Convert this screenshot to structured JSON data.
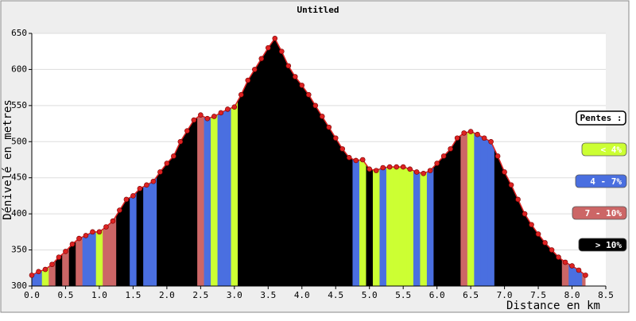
{
  "chart_data": {
    "type": "area",
    "title": "Untitled",
    "x_label": "Distance en km",
    "y_label": "Dénivelé en metres",
    "xlim": [
      0,
      8.5
    ],
    "ylim": [
      300,
      650
    ],
    "xticks": [
      {
        "value": 0,
        "label": "0.0"
      },
      {
        "value": 0.5,
        "label": "0.5"
      },
      {
        "value": 1,
        "label": "1.0"
      },
      {
        "value": 1.5,
        "label": "1.5"
      },
      {
        "value": 2,
        "label": "2.0"
      },
      {
        "value": 2.5,
        "label": "2.5"
      },
      {
        "value": 3,
        "label": "3.0"
      },
      {
        "value": 3.5,
        "label": "3.5"
      },
      {
        "value": 4,
        "label": "4.0"
      },
      {
        "value": 4.5,
        "label": "4.5"
      },
      {
        "value": 5,
        "label": "5.0"
      },
      {
        "value": 5.5,
        "label": "5.5"
      },
      {
        "value": 6,
        "label": "6.0"
      },
      {
        "value": 6.5,
        "label": "6.5"
      },
      {
        "value": 7,
        "label": "7.0"
      },
      {
        "value": 7.5,
        "label": "7.5"
      },
      {
        "value": 8,
        "label": "8.0"
      },
      {
        "value": 8.5,
        "label": "8.5"
      }
    ],
    "yticks": [
      300,
      350,
      400,
      450,
      500,
      550,
      600,
      650
    ],
    "grid": true,
    "x": [
      0,
      0.1,
      0.2,
      0.3,
      0.4,
      0.5,
      0.6,
      0.7,
      0.8,
      0.9,
      1,
      1.1,
      1.2,
      1.3,
      1.4,
      1.5,
      1.6,
      1.7,
      1.8,
      1.9,
      2,
      2.1,
      2.2,
      2.3,
      2.4,
      2.5,
      2.6,
      2.7,
      2.8,
      2.9,
      3,
      3.1,
      3.2,
      3.3,
      3.4,
      3.5,
      3.6,
      3.7,
      3.8,
      3.9,
      4,
      4.1,
      4.2,
      4.3,
      4.4,
      4.5,
      4.6,
      4.7,
      4.8,
      4.9,
      5,
      5.1,
      5.2,
      5.3,
      5.4,
      5.5,
      5.6,
      5.7,
      5.8,
      5.9,
      6,
      6.1,
      6.2,
      6.3,
      6.4,
      6.5,
      6.6,
      6.7,
      6.8,
      6.9,
      7,
      7.1,
      7.2,
      7.3,
      7.4,
      7.5,
      7.6,
      7.7,
      7.8,
      7.9,
      8,
      8.1,
      8.2
    ],
    "series": [
      {
        "color": "#dd2222",
        "values": [
          315,
          320,
          323,
          330,
          340,
          348,
          358,
          366,
          370,
          375,
          375,
          382,
          390,
          405,
          420,
          425,
          435,
          440,
          445,
          458,
          470,
          480,
          500,
          515,
          530,
          537,
          532,
          535,
          540,
          545,
          548,
          565,
          585,
          600,
          615,
          630,
          643,
          625,
          605,
          590,
          578,
          565,
          550,
          535,
          520,
          505,
          490,
          478,
          474,
          475,
          462,
          460,
          464,
          465,
          465,
          465,
          462,
          458,
          456,
          460,
          470,
          480,
          490,
          505,
          512,
          514,
          510,
          505,
          500,
          480,
          458,
          440,
          420,
          400,
          385,
          372,
          360,
          350,
          340,
          333,
          328,
          322,
          315
        ],
        "classes": [
          1,
          1,
          0,
          2,
          3,
          2,
          3,
          2,
          1,
          1,
          0,
          2,
          2,
          3,
          3,
          1,
          3,
          1,
          1,
          3,
          3,
          3,
          3,
          3,
          3,
          2,
          1,
          0,
          1,
          1,
          0,
          3,
          3,
          3,
          3,
          3,
          3,
          3,
          3,
          3,
          3,
          3,
          3,
          3,
          3,
          3,
          3,
          3,
          1,
          0,
          3,
          0,
          1,
          0,
          0,
          0,
          0,
          1,
          0,
          1,
          3,
          3,
          3,
          3,
          2,
          0,
          1,
          1,
          1,
          3,
          3,
          3,
          3,
          3,
          3,
          3,
          3,
          3,
          3,
          2,
          1,
          1,
          2
        ]
      }
    ],
    "legend": {
      "title": "Pentes :",
      "items": [
        {
          "label": "< 4%",
          "color": "#ccff33"
        },
        {
          "label": "4 - 7%",
          "color": "#4a6fe0"
        },
        {
          "label": "7 - 10%",
          "color": "#cc6666"
        },
        {
          "label": "> 10%",
          "color": "#000000"
        }
      ]
    }
  }
}
